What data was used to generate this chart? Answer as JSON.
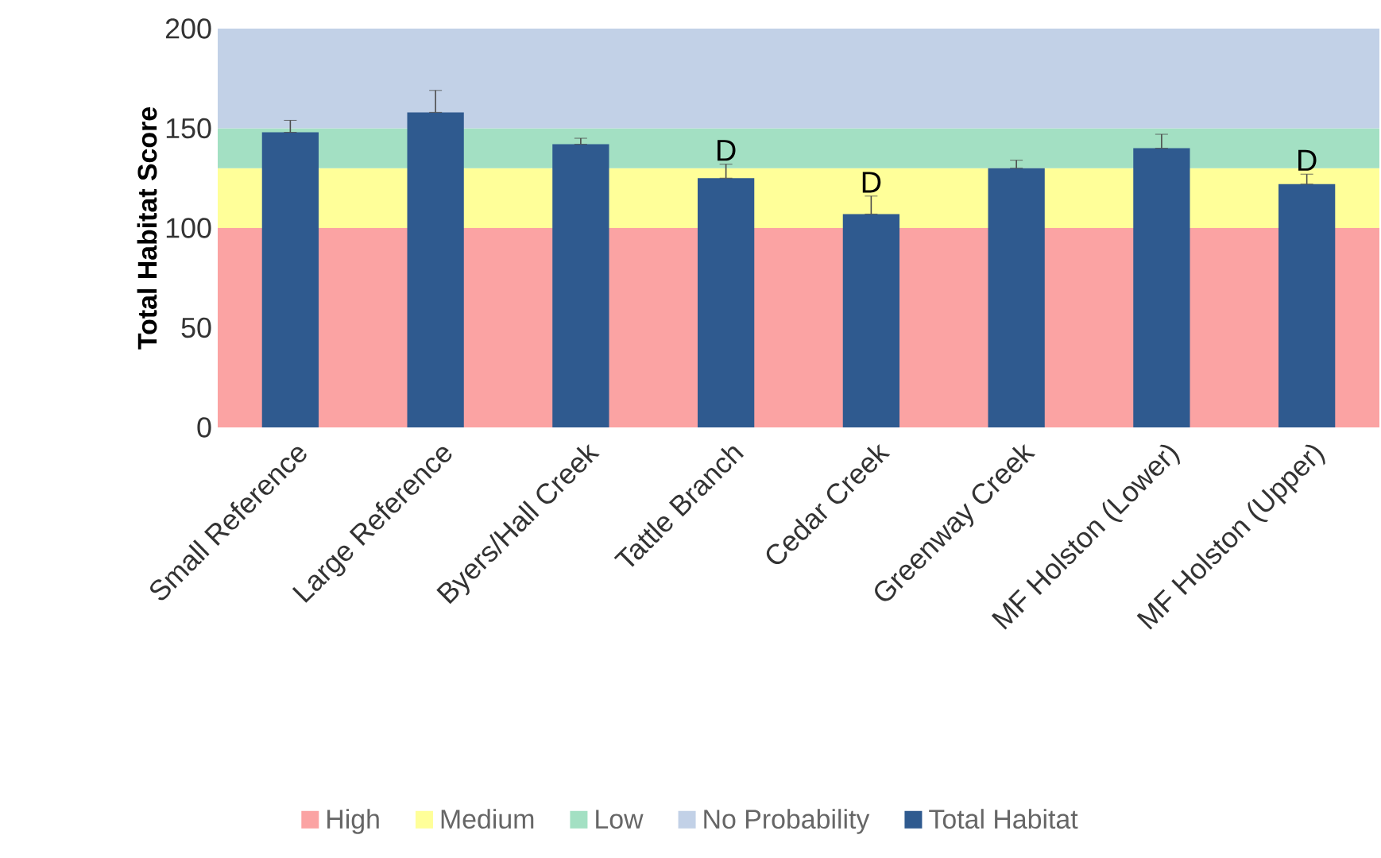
{
  "chart_data": {
    "type": "bar",
    "ylabel": "Total Habitat Score",
    "categories": [
      "Small Reference",
      "Large Reference",
      "Byers/Hall Creek",
      "Tattle Branch",
      "Cedar Creek",
      "Greenway Creek",
      "MF Holston (Lower)",
      "MF Holston (Upper)"
    ],
    "series": [
      {
        "name": "Total Habitat",
        "color": "#2f5a8f",
        "values": [
          148,
          158,
          142,
          125,
          107,
          130,
          140,
          122
        ],
        "errors": [
          [
            148,
            154
          ],
          [
            158,
            169
          ],
          [
            142,
            145
          ],
          [
            125,
            132
          ],
          [
            107,
            116
          ],
          [
            130,
            134
          ],
          [
            140,
            147
          ],
          [
            122,
            127
          ]
        ]
      }
    ],
    "ylim": [
      0,
      200
    ],
    "yticks": [
      0,
      50,
      100,
      150,
      200
    ],
    "bands": [
      {
        "axis": "y",
        "from": 0,
        "to": 100,
        "label": "High",
        "color": "#fba3a3"
      },
      {
        "axis": "y",
        "from": 100,
        "to": 130,
        "label": "Medium",
        "color": "#ffff99"
      },
      {
        "axis": "y",
        "from": 130,
        "to": 150,
        "label": "Low",
        "color": "#a3e0c3"
      },
      {
        "axis": "y",
        "from": 150,
        "to": 200,
        "label": "No Probability",
        "color": "#c2d1e7"
      }
    ],
    "annotations": [
      {
        "text": "D",
        "x": "Tattle Branch",
        "y": 132
      },
      {
        "text": "D",
        "x": "Cedar Creek",
        "y": 116
      },
      {
        "text": "D",
        "x": "MF Holston (Upper)",
        "y": 127
      }
    ],
    "legend": "bottom",
    "grid": false
  }
}
